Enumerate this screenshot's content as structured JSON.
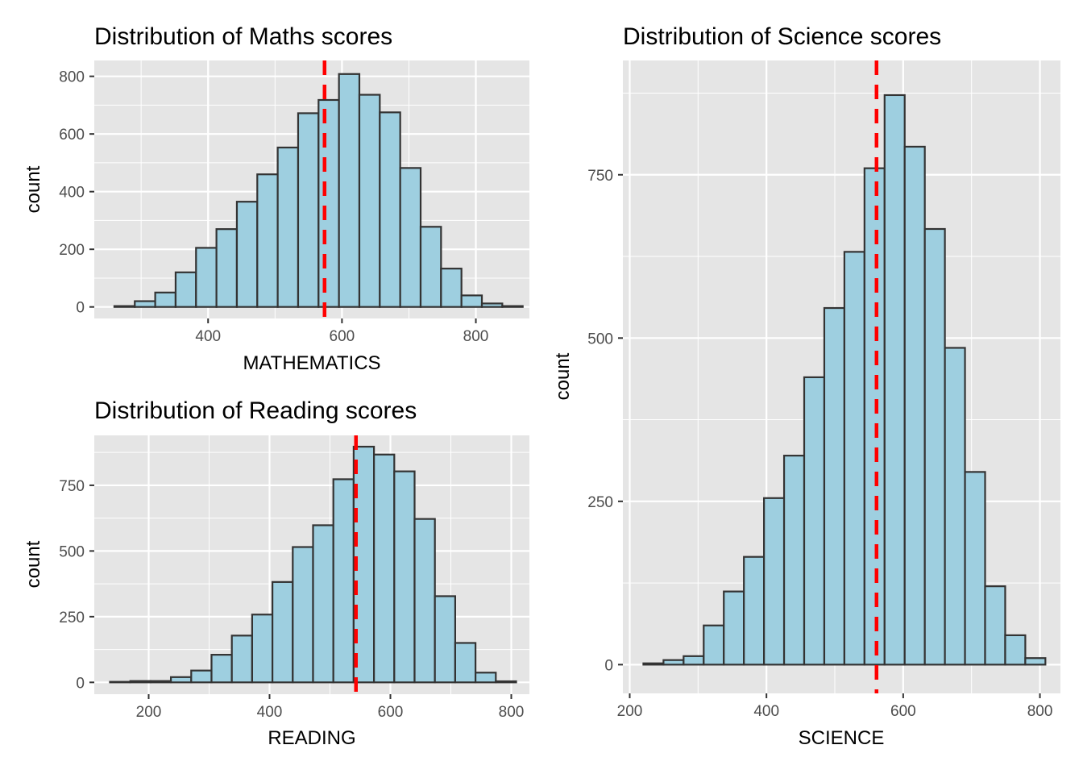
{
  "colors": {
    "panel_background": "#e5e5e5",
    "grid_line": "#ffffff",
    "bar_fill": "#9ecfe0",
    "bar_outline": "#333333",
    "mean_line": "#ff0000",
    "tick_text": "#4d4d4d"
  },
  "chart_data": [
    {
      "type": "bar",
      "title": "Distribution of Maths scores",
      "xlabel": "MATHEMATICS",
      "ylabel": "count",
      "grid": true,
      "xlim": [
        230,
        880
      ],
      "ylim": [
        -40,
        855
      ],
      "xticks": [
        400,
        600,
        800
      ],
      "yticks": [
        0,
        200,
        400,
        600,
        800
      ],
      "bin_start": 260,
      "bin_width": 30.5,
      "values": [
        3,
        20,
        50,
        120,
        205,
        270,
        365,
        460,
        553,
        672,
        718,
        808,
        736,
        675,
        482,
        278,
        133,
        40,
        12,
        3
      ],
      "mean": 574
    },
    {
      "type": "bar",
      "title": "Distribution of Reading scores",
      "xlabel": "READING",
      "ylabel": "count",
      "grid": true,
      "xlim": [
        110,
        830
      ],
      "ylim": [
        -45,
        940
      ],
      "xticks": [
        200,
        400,
        600,
        800
      ],
      "yticks": [
        0,
        250,
        500,
        750
      ],
      "bin_start": 136,
      "bin_width": 33.6,
      "values": [
        2,
        5,
        5,
        20,
        45,
        105,
        178,
        258,
        382,
        515,
        598,
        773,
        897,
        867,
        803,
        622,
        328,
        150,
        37,
        4
      ],
      "mean": 543
    },
    {
      "type": "bar",
      "title": "Distribution of Science scores",
      "xlabel": "SCIENCE",
      "ylabel": "count",
      "grid": true,
      "xlim": [
        190,
        830
      ],
      "ylim": [
        -44,
        925
      ],
      "xticks": [
        200,
        400,
        600,
        800
      ],
      "yticks": [
        0,
        250,
        500,
        750
      ],
      "bin_start": 220,
      "bin_width": 29.4,
      "values": [
        2,
        7,
        13,
        60,
        112,
        165,
        255,
        320,
        440,
        546,
        632,
        760,
        872,
        793,
        667,
        485,
        295,
        120,
        45,
        10
      ],
      "mean": 561
    }
  ]
}
